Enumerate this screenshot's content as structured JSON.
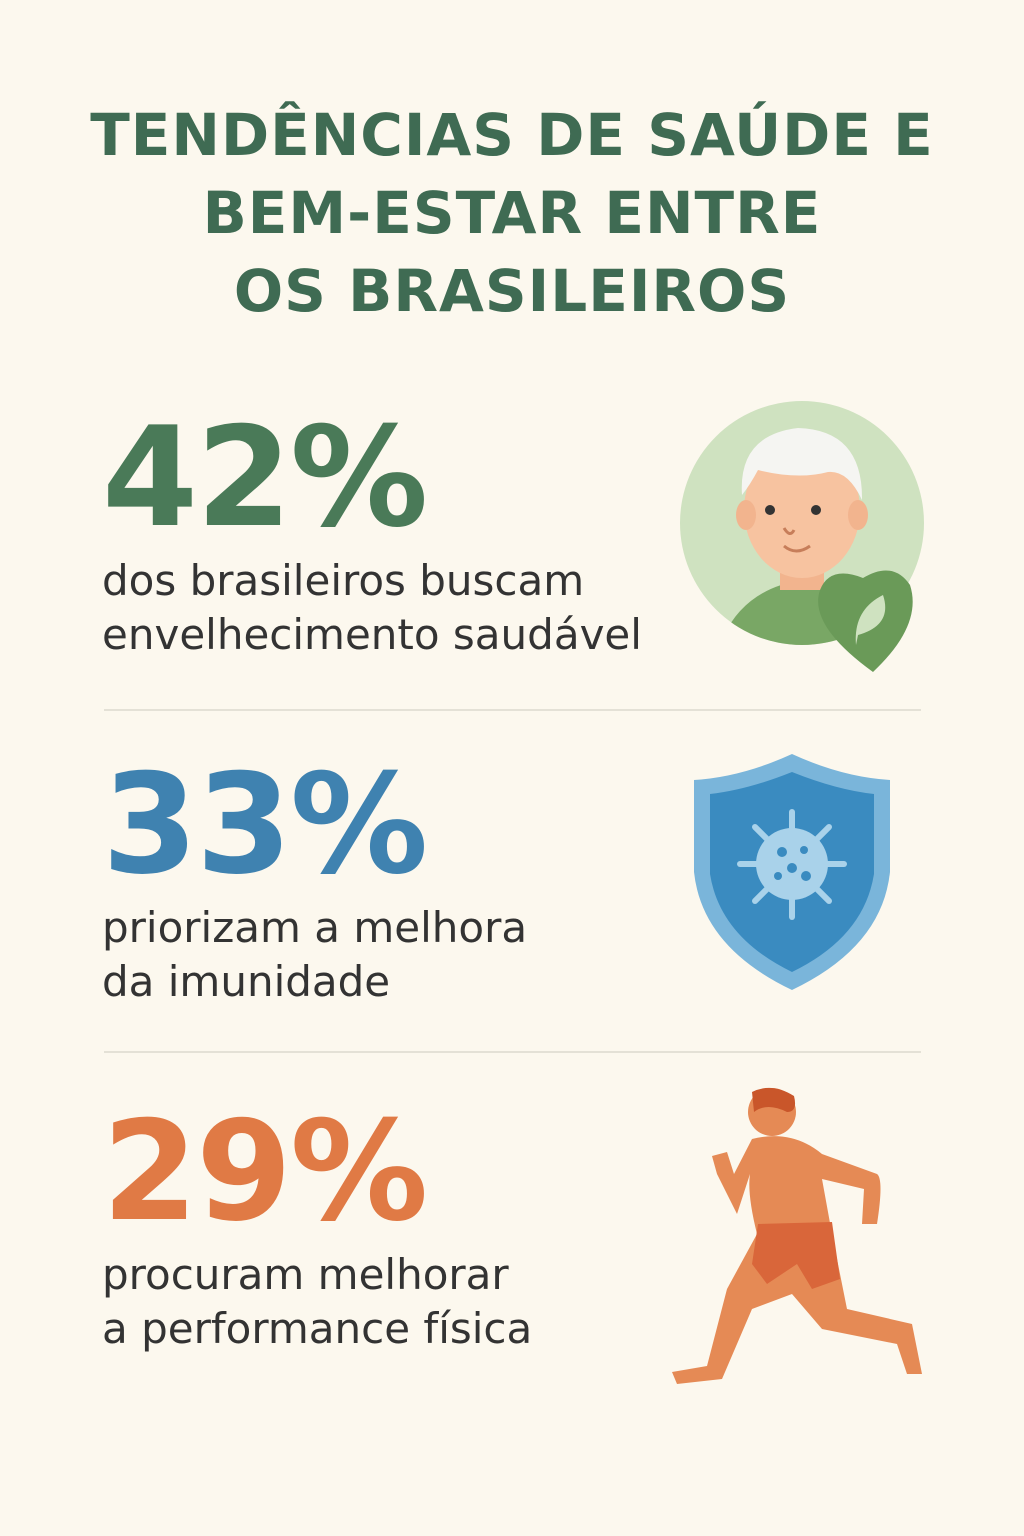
{
  "title": {
    "lines": [
      "TENDÊNCIAS DE SAÚDE E",
      "BEM-ESTAR ENTRE",
      "OS BRASILEIROS"
    ]
  },
  "colors": {
    "background": "#fcf8ee",
    "title": "#3f6b53",
    "green": "#4a7a58",
    "blue": "#3f82b0",
    "orange": "#e07a45",
    "text": "#333333"
  },
  "stats": [
    {
      "value": "42%",
      "lines": [
        "dos brasileiros buscam",
        "envelhecimento saudável"
      ],
      "icon": "elderly-person-heart-leaf-icon"
    },
    {
      "value": "33%",
      "lines": [
        "priorizam a melhora",
        "da imunidade"
      ],
      "icon": "shield-virus-icon"
    },
    {
      "value": "29%",
      "lines": [
        "procuram melhorar",
        "a performance física"
      ],
      "icon": "runner-icon"
    }
  ]
}
